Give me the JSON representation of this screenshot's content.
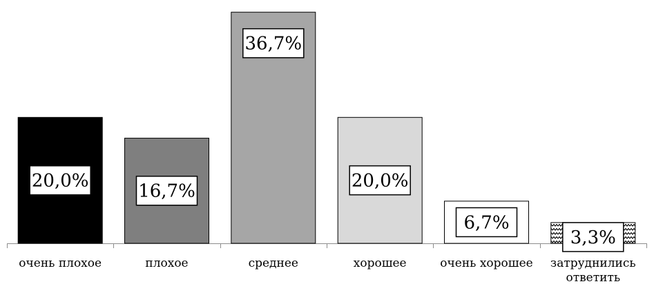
{
  "chart_data": {
    "type": "bar",
    "title": "",
    "xlabel": "",
    "ylabel": "",
    "ylim": [
      0,
      37
    ],
    "grid": false,
    "legend": "none",
    "categories": [
      [
        "очень плохое"
      ],
      [
        "плохое"
      ],
      [
        "среднее"
      ],
      [
        "хорошее"
      ],
      [
        "очень хорошее"
      ],
      [
        "затруднились",
        "ответить"
      ]
    ],
    "values": [
      20.0,
      16.7,
      36.7,
      20.0,
      6.7,
      3.3
    ],
    "data_labels": [
      "20,0%",
      "16,7%",
      "36,7%",
      "20,0%",
      "6,7%",
      "3,3%"
    ],
    "fills": [
      "#000000",
      "#7f7f7f",
      "#a6a6a6",
      "#d9d9d9",
      "#ffffff",
      "pattern-zigzag"
    ]
  }
}
